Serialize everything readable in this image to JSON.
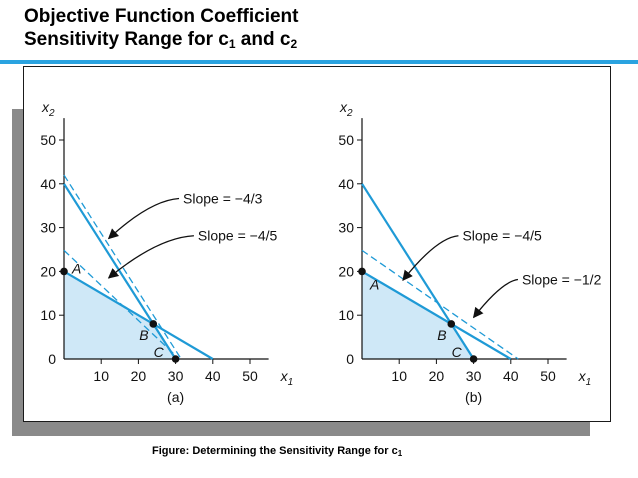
{
  "title": {
    "line1": "Objective Function Coefficient",
    "line2_prefix": "Sensitivity Range for c",
    "line2_sub1": "1",
    "line2_mid": " and c",
    "line2_sub2": "2"
  },
  "caption": {
    "text": "Figure: Determining the Sensitivity Range for c",
    "sub": "1"
  },
  "colors": {
    "accent": "#2aa3e0",
    "line": "#1f9ad6",
    "region": "#cfe8f7"
  },
  "chart_data": [
    {
      "type": "line",
      "panel_label": "(a)",
      "xlabel": "x",
      "xlabel_sub": "1",
      "ylabel": "x",
      "ylabel_sub": "2",
      "xticks": [
        10,
        20,
        30,
        40,
        50
      ],
      "yticks": [
        0,
        10,
        20,
        30,
        40,
        50
      ],
      "xlim": [
        0,
        55
      ],
      "ylim": [
        0,
        55
      ],
      "feasible_region": [
        [
          0,
          0
        ],
        [
          0,
          20
        ],
        [
          24,
          8
        ],
        [
          30,
          0
        ]
      ],
      "constraint_lines": [
        [
          [
            0,
            40
          ],
          [
            40,
            0
          ]
        ],
        [
          [
            0,
            20
          ],
          [
            40,
            0
          ]
        ]
      ],
      "solid_lines": [
        [
          [
            0,
            20
          ],
          [
            40,
            0
          ]
        ],
        [
          [
            0,
            40
          ],
          [
            30,
            0
          ]
        ]
      ],
      "dashed_lines": [
        [
          [
            0,
            42
          ],
          [
            31.5,
            0
          ]
        ],
        [
          [
            0,
            24.8
          ],
          [
            31,
            0
          ]
        ]
      ],
      "points": [
        {
          "name": "A",
          "x": 0,
          "y": 20
        },
        {
          "name": "B",
          "x": 24,
          "y": 8
        },
        {
          "name": "C",
          "x": 30,
          "y": 0
        }
      ],
      "annotations": [
        {
          "text": "Slope = −4/3",
          "tx": 32,
          "ty": 35.5,
          "ax": 12,
          "ay": 27.5
        },
        {
          "text": "Slope = −4/5",
          "tx": 36,
          "ty": 27,
          "ax": 12,
          "ay": 18.5
        }
      ]
    },
    {
      "type": "line",
      "panel_label": "(b)",
      "xlabel": "x",
      "xlabel_sub": "1",
      "ylabel": "x",
      "ylabel_sub": "2",
      "xticks": [
        10,
        20,
        30,
        40,
        50
      ],
      "yticks": [
        0,
        10,
        20,
        30,
        40,
        50
      ],
      "xlim": [
        0,
        55
      ],
      "ylim": [
        0,
        55
      ],
      "feasible_region": [
        [
          0,
          0
        ],
        [
          0,
          20
        ],
        [
          24,
          8
        ],
        [
          30,
          0
        ]
      ],
      "constraint_lines": [
        [
          [
            0,
            40
          ],
          [
            40,
            0
          ]
        ],
        [
          [
            0,
            20
          ],
          [
            40,
            0
          ]
        ]
      ],
      "solid_lines": [
        [
          [
            0,
            20
          ],
          [
            40,
            0
          ]
        ],
        [
          [
            0,
            40
          ],
          [
            30,
            0
          ]
        ]
      ],
      "dashed_lines": [
        [
          [
            0,
            24.8
          ],
          [
            42,
            0
          ]
        ],
        [
          [
            0,
            20
          ],
          [
            40,
            0
          ]
        ]
      ],
      "points": [
        {
          "name": "A",
          "x": 0,
          "y": 20
        },
        {
          "name": "B",
          "x": 24,
          "y": 8
        },
        {
          "name": "C",
          "x": 30,
          "y": 0
        }
      ],
      "annotations": [
        {
          "text": "Slope = −4/5",
          "tx": 27,
          "ty": 27,
          "ax": 11,
          "ay": 18
        },
        {
          "text": "Slope = −1/2",
          "tx": 43,
          "ty": 17,
          "ax": 30,
          "ay": 9.5
        }
      ]
    }
  ]
}
